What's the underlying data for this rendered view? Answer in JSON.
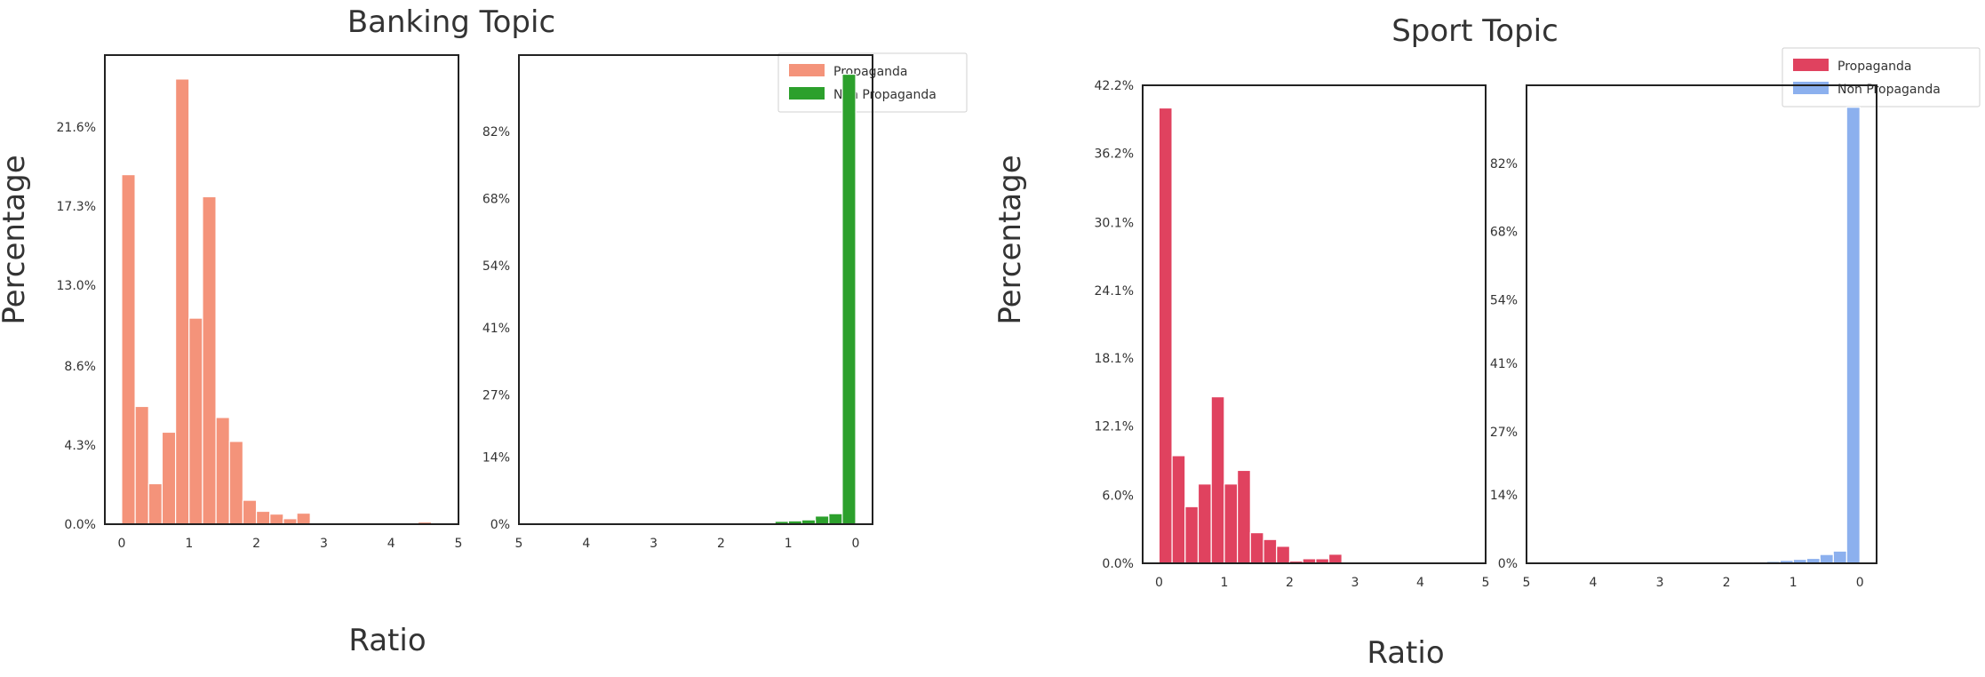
{
  "colors": {
    "banking_prop": "#f4937a",
    "banking_nonprop": "#2ca02c",
    "sport_prop": "#e0425f",
    "sport_nonprop": "#8cb0ee",
    "axis": "#222222",
    "text": "#333333"
  },
  "chart_data": [
    {
      "type": "bar",
      "group": "banking",
      "title": "Banking Topic",
      "ylabel": "Percentage",
      "xlabel": "Ratio",
      "panel": "left",
      "series_name": "Propaganda",
      "color": "#f4937a",
      "xlim": [
        -0.25,
        5
      ],
      "ylim": [
        0,
        25.5
      ],
      "xticks": [
        0,
        1,
        2,
        3,
        4,
        5
      ],
      "xtick_labels": [
        "0",
        "1",
        "2",
        "3",
        "4",
        "5"
      ],
      "yticks": [
        0,
        4.3,
        8.6,
        13.0,
        17.3,
        21.6
      ],
      "ytick_labels": [
        "0.0%",
        "4.3%",
        "8.6%",
        "13.0%",
        "17.3%",
        "21.6%"
      ],
      "bin_width": 0.2,
      "x": [
        0,
        0.2,
        0.4,
        0.6,
        0.8,
        1.0,
        1.2,
        1.4,
        1.6,
        1.8,
        2.0,
        2.2,
        2.4,
        2.6,
        2.8,
        3.0,
        3.2,
        3.4,
        3.6,
        3.8,
        4.0,
        4.2,
        4.4,
        4.6
      ],
      "values": [
        19.0,
        6.4,
        2.2,
        5.0,
        24.2,
        11.2,
        17.8,
        5.8,
        4.5,
        1.3,
        0.7,
        0.55,
        0.3,
        0.6,
        0.05,
        0.05,
        0.05,
        0.05,
        0.05,
        0.05,
        0.05,
        0.05,
        0.12,
        0.05
      ]
    },
    {
      "type": "bar",
      "group": "banking",
      "panel": "right",
      "series_name": "Non Propaganda",
      "color": "#2ca02c",
      "xlim": [
        5,
        -0.25
      ],
      "ylim": [
        0,
        98
      ],
      "xticks": [
        5,
        4,
        3,
        2,
        1,
        0
      ],
      "xtick_labels": [
        "5",
        "4",
        "3",
        "2",
        "1",
        "0"
      ],
      "yticks": [
        0,
        14,
        27,
        41,
        54,
        68,
        82
      ],
      "ytick_labels": [
        "0%",
        "14%",
        "27%",
        "41%",
        "54%",
        "68%",
        "82%"
      ],
      "bin_width": 0.2,
      "x": [
        0,
        0.2,
        0.4,
        0.6,
        0.8,
        1.0,
        1.2,
        1.4,
        1.6,
        1.8,
        2.0,
        2.2,
        2.4,
        2.6,
        2.8,
        3.0,
        3.2,
        3.4,
        3.6,
        3.8,
        4.0,
        4.2,
        4.4,
        4.6
      ],
      "values": [
        94.0,
        2.2,
        1.7,
        0.9,
        0.7,
        0.6,
        0.3,
        0.25,
        0.2,
        0.2,
        0.2,
        0.15,
        0.1,
        0.1,
        0.2,
        0.1,
        0.1,
        0.1,
        0.1,
        0.1,
        0.1,
        0.1,
        0.1,
        0.1
      ]
    },
    {
      "type": "bar",
      "group": "sport",
      "title": "Sport Topic",
      "ylabel": "Percentage",
      "xlabel": "Ratio",
      "panel": "left",
      "series_name": "Propaganda",
      "color": "#e0425f",
      "xlim": [
        -0.25,
        5
      ],
      "ylim": [
        0,
        42.2
      ],
      "xticks": [
        0,
        1,
        2,
        3,
        4,
        5
      ],
      "xtick_labels": [
        "0",
        "1",
        "2",
        "3",
        "4",
        "5"
      ],
      "yticks": [
        0,
        6.0,
        12.1,
        18.1,
        24.1,
        30.1,
        36.2,
        42.2
      ],
      "ytick_labels": [
        "0.0%",
        "6.0%",
        "12.1%",
        "18.1%",
        "24.1%",
        "30.1%",
        "36.2%",
        "42.2%"
      ],
      "bin_width": 0.2,
      "x": [
        0,
        0.2,
        0.4,
        0.6,
        0.8,
        1.0,
        1.2,
        1.4,
        1.6,
        1.8,
        2.0,
        2.2,
        2.4,
        2.6,
        2.8,
        3.0,
        3.2,
        3.4,
        3.6,
        3.8,
        4.0,
        4.2,
        4.4,
        4.6
      ],
      "values": [
        40.2,
        9.5,
        5.0,
        7.0,
        14.7,
        7.0,
        8.2,
        2.7,
        2.1,
        1.5,
        0.2,
        0.4,
        0.4,
        0.8,
        0.05,
        0.05,
        0.05,
        0.05,
        0.05,
        0.05,
        0.05,
        0.05,
        0.12,
        0.05
      ]
    },
    {
      "type": "bar",
      "group": "sport",
      "panel": "right",
      "series_name": "Non Propaganda",
      "color": "#8cb0ee",
      "xlim": [
        5,
        -0.25
      ],
      "ylim": [
        0,
        98
      ],
      "xticks": [
        5,
        4,
        3,
        2,
        1,
        0
      ],
      "xtick_labels": [
        "5",
        "4",
        "3",
        "2",
        "1",
        "0"
      ],
      "yticks": [
        0,
        14,
        27,
        41,
        54,
        68,
        82
      ],
      "ytick_labels": [
        "0%",
        "14%",
        "27%",
        "41%",
        "54%",
        "68%",
        "82%"
      ],
      "bin_width": 0.2,
      "x": [
        0,
        0.2,
        0.4,
        0.6,
        0.8,
        1.0,
        1.2,
        1.4,
        1.6,
        1.8,
        2.0,
        2.2,
        2.4,
        2.6,
        2.8,
        3.0,
        3.2,
        3.4,
        3.6,
        3.8,
        4.0,
        4.2,
        4.4,
        4.6
      ],
      "values": [
        93.5,
        2.5,
        1.8,
        1.0,
        0.8,
        0.6,
        0.4,
        0.3,
        0.3,
        0.2,
        0.2,
        0.15,
        0.1,
        0.1,
        0.1,
        0.1,
        0.1,
        0.1,
        0.1,
        0.1,
        0.1,
        0.1,
        0.1,
        0.1
      ]
    }
  ],
  "legends": {
    "banking": {
      "placement": "top-right",
      "items": [
        {
          "label": "Propaganda",
          "color": "#f4937a"
        },
        {
          "label": "Non Propaganda",
          "color": "#2ca02c"
        }
      ]
    },
    "sport": {
      "placement": "top-right",
      "items": [
        {
          "label": "Propaganda",
          "color": "#e0425f"
        },
        {
          "label": "Non Propaganda",
          "color": "#8cb0ee"
        }
      ]
    }
  }
}
